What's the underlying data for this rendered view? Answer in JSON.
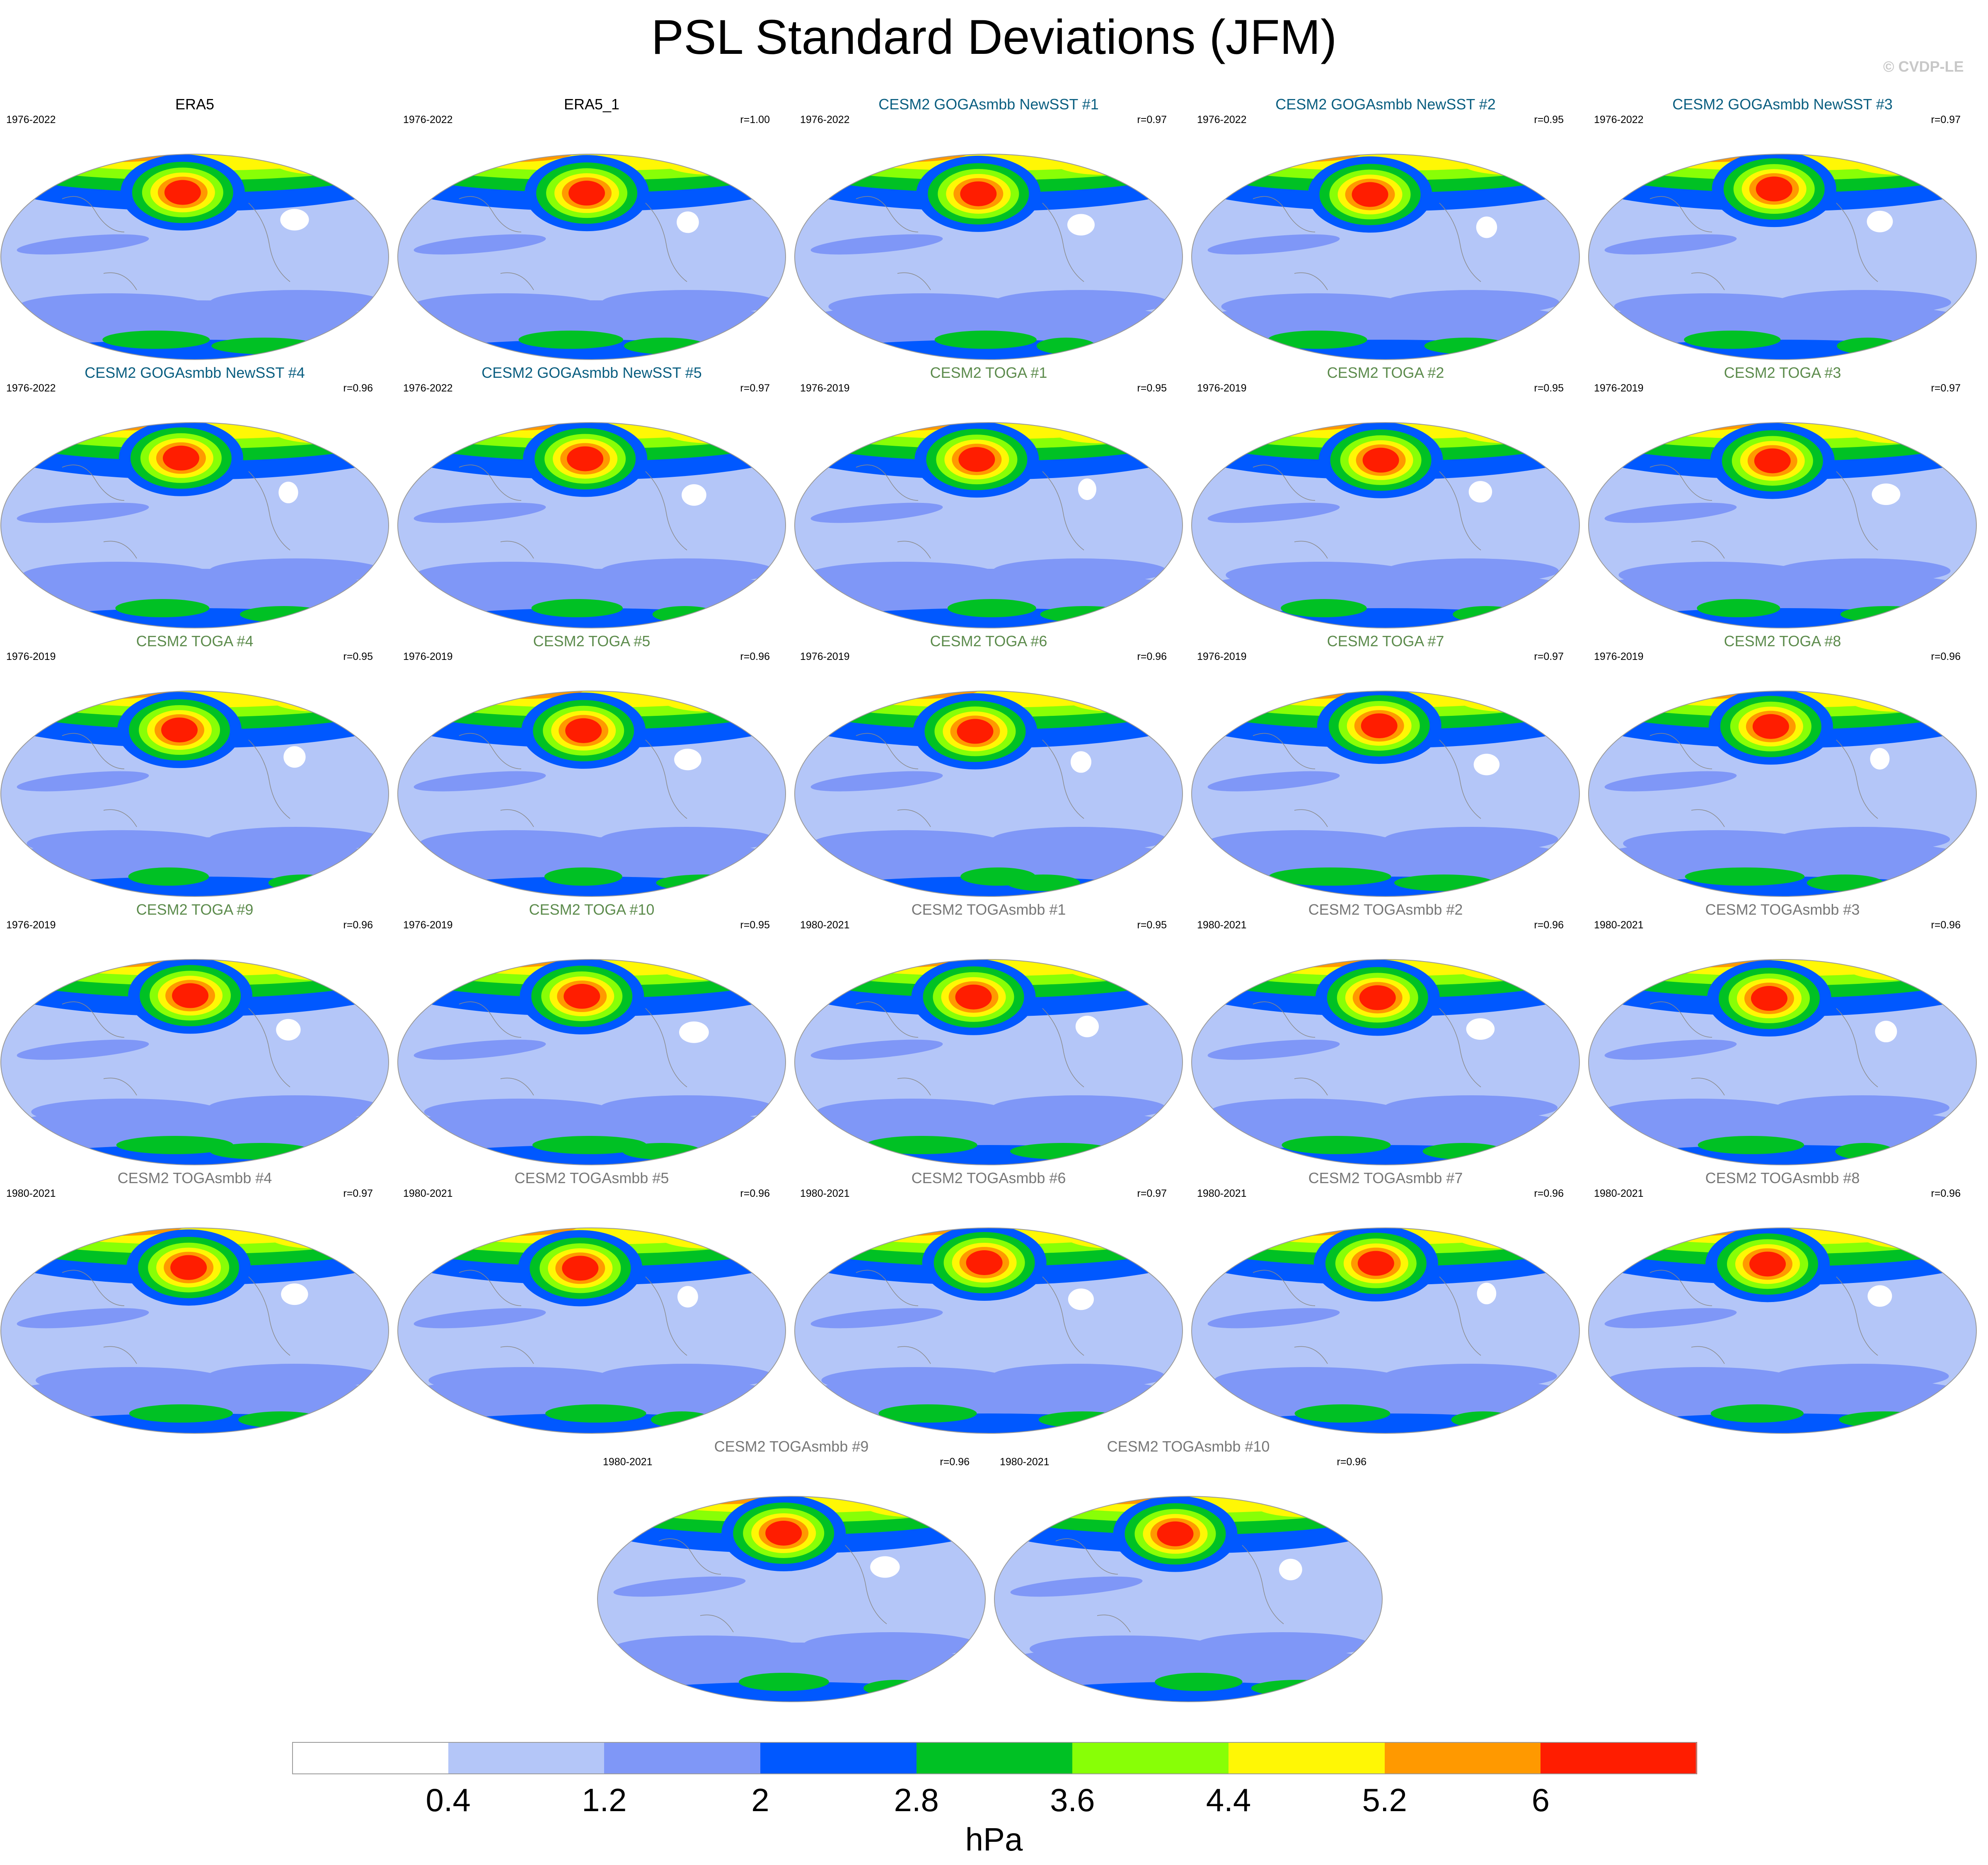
{
  "title": "PSL Standard Deviations (JFM)",
  "credit": "© CVDP-LE",
  "legend": {
    "units": "hPa",
    "levels": [
      "0.4",
      "1.2",
      "2",
      "2.8",
      "3.6",
      "4.4",
      "5.2",
      "6"
    ],
    "colors": [
      "#ffffff",
      "#b4c6f8",
      "#7f97f7",
      "#0058ff",
      "#00c124",
      "#88ff06",
      "#fff705",
      "#ff9900",
      "#ff1d00"
    ]
  },
  "title_colors": {
    "obs": "#000000",
    "goga": "#0a5e80",
    "toga": "#5c8b4c",
    "togasmbb": "#777777"
  },
  "panels": [
    {
      "title": "ERA5",
      "group": "obs",
      "years": "1976-2022",
      "r": ""
    },
    {
      "title": "ERA5_1",
      "group": "obs",
      "years": "1976-2022",
      "r": "r=1.00"
    },
    {
      "title": "CESM2 GOGAsmbb NewSST #1",
      "group": "goga",
      "years": "1976-2022",
      "r": "r=0.97"
    },
    {
      "title": "CESM2 GOGAsmbb NewSST #2",
      "group": "goga",
      "years": "1976-2022",
      "r": "r=0.95"
    },
    {
      "title": "CESM2 GOGAsmbb NewSST #3",
      "group": "goga",
      "years": "1976-2022",
      "r": "r=0.97"
    },
    {
      "title": "CESM2 GOGAsmbb NewSST #4",
      "group": "goga",
      "years": "1976-2022",
      "r": "r=0.96"
    },
    {
      "title": "CESM2 GOGAsmbb NewSST #5",
      "group": "goga",
      "years": "1976-2022",
      "r": "r=0.97"
    },
    {
      "title": "CESM2 TOGA #1",
      "group": "toga",
      "years": "1976-2019",
      "r": "r=0.95"
    },
    {
      "title": "CESM2 TOGA #2",
      "group": "toga",
      "years": "1976-2019",
      "r": "r=0.95"
    },
    {
      "title": "CESM2 TOGA #3",
      "group": "toga",
      "years": "1976-2019",
      "r": "r=0.97"
    },
    {
      "title": "CESM2 TOGA #4",
      "group": "toga",
      "years": "1976-2019",
      "r": "r=0.95"
    },
    {
      "title": "CESM2 TOGA #5",
      "group": "toga",
      "years": "1976-2019",
      "r": "r=0.96"
    },
    {
      "title": "CESM2 TOGA #6",
      "group": "toga",
      "years": "1976-2019",
      "r": "r=0.96"
    },
    {
      "title": "CESM2 TOGA #7",
      "group": "toga",
      "years": "1976-2019",
      "r": "r=0.97"
    },
    {
      "title": "CESM2 TOGA #8",
      "group": "toga",
      "years": "1976-2019",
      "r": "r=0.96"
    },
    {
      "title": "CESM2 TOGA #9",
      "group": "toga",
      "years": "1976-2019",
      "r": "r=0.96"
    },
    {
      "title": "CESM2 TOGA #10",
      "group": "toga",
      "years": "1976-2019",
      "r": "r=0.95"
    },
    {
      "title": "CESM2 TOGAsmbb #1",
      "group": "togasmbb",
      "years": "1980-2021",
      "r": "r=0.95"
    },
    {
      "title": "CESM2 TOGAsmbb #2",
      "group": "togasmbb",
      "years": "1980-2021",
      "r": "r=0.96"
    },
    {
      "title": "CESM2 TOGAsmbb #3",
      "group": "togasmbb",
      "years": "1980-2021",
      "r": "r=0.96"
    },
    {
      "title": "CESM2 TOGAsmbb #4",
      "group": "togasmbb",
      "years": "1980-2021",
      "r": "r=0.97"
    },
    {
      "title": "CESM2 TOGAsmbb #5",
      "group": "togasmbb",
      "years": "1980-2021",
      "r": "r=0.96"
    },
    {
      "title": "CESM2 TOGAsmbb #6",
      "group": "togasmbb",
      "years": "1980-2021",
      "r": "r=0.97"
    },
    {
      "title": "CESM2 TOGAsmbb #7",
      "group": "togasmbb",
      "years": "1980-2021",
      "r": "r=0.96"
    },
    {
      "title": "CESM2 TOGAsmbb #8",
      "group": "togasmbb",
      "years": "1980-2021",
      "r": "r=0.96"
    },
    {
      "title": "CESM2 TOGAsmbb #9",
      "group": "togasmbb",
      "years": "1980-2021",
      "r": "r=0.96"
    },
    {
      "title": "CESM2 TOGAsmbb #10",
      "group": "togasmbb",
      "years": "1980-2021",
      "r": "r=0.96"
    }
  ]
}
